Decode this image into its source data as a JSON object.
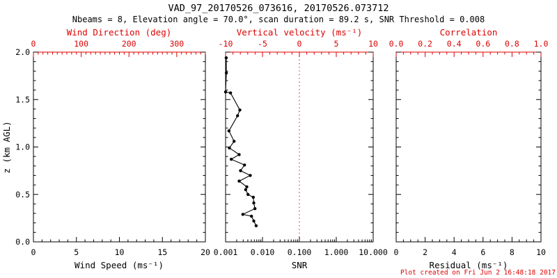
{
  "header": {
    "title": "VAD_97_20170526_073616, 20170526.073712",
    "subtitle": "Nbeams = 8, Elevation angle = 70.0°, scan duration = 89.2 s, SNR Threshold = 0.008"
  },
  "footer": {
    "created": "Plot created on Fri Jun  2 16:48:18 2017"
  },
  "colors": {
    "axis_primary": "#000000",
    "axis_secondary": "#dd0000",
    "background": "#ffffff",
    "data": "#000000"
  },
  "chart_data": [
    {
      "type": "line",
      "panel": "wind-speed",
      "x_bottom": {
        "label": "Wind Speed (ms⁻¹)",
        "scale": "linear",
        "min": 0,
        "max": 20,
        "ticks": [
          "0",
          "5",
          "10",
          "15",
          "20"
        ],
        "tick_values": [
          0,
          5,
          10,
          15,
          20
        ],
        "minor_step": 1
      },
      "x_top": {
        "label": "Wind Direction (deg)",
        "scale": "linear",
        "min": 0,
        "max": 360,
        "ticks": [
          "0",
          "100",
          "200",
          "300"
        ],
        "tick_values": [
          0,
          100,
          200,
          300
        ],
        "minor_step": 10
      },
      "y": {
        "label": "z (km AGL)",
        "min": 0,
        "max": 2,
        "ticks": [
          "2.0",
          "1.5",
          "1.0",
          "0.5",
          "0.0"
        ],
        "tick_values": [
          2,
          1.5,
          1,
          0.5,
          0
        ],
        "minor_step": 0.1
      },
      "series": []
    },
    {
      "type": "line",
      "panel": "snr",
      "x_bottom": {
        "label": "SNR",
        "scale": "log",
        "min": 0.001,
        "max": 10,
        "ticks": [
          "0.001",
          "0.010",
          "0.100",
          "1.000",
          "10.000"
        ],
        "tick_values": [
          0.001,
          0.01,
          0.1,
          1,
          10
        ]
      },
      "x_top": {
        "label": "Vertical velocity (ms⁻¹)",
        "scale": "linear",
        "min": -10,
        "max": 10,
        "ticks": [
          "-10",
          "-5",
          "0",
          "5",
          "10"
        ],
        "tick_values": [
          -10,
          -5,
          0,
          5,
          10
        ],
        "minor_step": 1
      },
      "y": {
        "min": 0,
        "max": 2,
        "tick_values": [
          2,
          1.5,
          1,
          0.5,
          0
        ],
        "minor_step": 0.1
      },
      "ref_line": {
        "axis": "x_top",
        "value": 0,
        "style": "dotted",
        "color": "#dd0000"
      },
      "series": [
        {
          "name": "snr-profile",
          "marker": "dot",
          "points": [
            [
              0.00104,
              1.94
            ],
            [
              0.00105,
              1.78
            ],
            [
              0.001,
              1.58
            ],
            [
              0.00136,
              1.57
            ],
            [
              0.00244,
              1.39
            ],
            [
              0.00211,
              1.33
            ],
            [
              0.00123,
              1.17
            ],
            [
              0.0017,
              1.06
            ],
            [
              0.00127,
              0.99
            ],
            [
              0.00233,
              0.92
            ],
            [
              0.00143,
              0.87
            ],
            [
              0.00326,
              0.81
            ],
            [
              0.00254,
              0.75
            ],
            [
              0.00468,
              0.7
            ],
            [
              0.00233,
              0.64
            ],
            [
              0.00377,
              0.58
            ],
            [
              0.00349,
              0.55
            ],
            [
              0.00405,
              0.5
            ],
            [
              0.00564,
              0.47
            ],
            [
              0.00581,
              0.41
            ],
            [
              0.00626,
              0.35
            ],
            [
              0.00294,
              0.29
            ],
            [
              0.00503,
              0.27
            ],
            [
              0.00581,
              0.22
            ],
            [
              0.00672,
              0.17
            ]
          ]
        }
      ]
    },
    {
      "type": "line",
      "panel": "residual",
      "x_bottom": {
        "label": "Residual (ms⁻¹)",
        "scale": "linear",
        "min": 0,
        "max": 10,
        "ticks": [
          "0",
          "2",
          "4",
          "6",
          "8",
          "10"
        ],
        "tick_values": [
          0,
          2,
          4,
          6,
          8,
          10
        ],
        "minor_step": 0.5
      },
      "x_top": {
        "label": "Correlation",
        "scale": "linear",
        "min": 0,
        "max": 1,
        "ticks": [
          "0.0",
          "0.2",
          "0.4",
          "0.6",
          "0.8",
          "1.0"
        ],
        "tick_values": [
          0,
          0.2,
          0.4,
          0.6,
          0.8,
          1
        ],
        "minor_step": 0.05
      },
      "y": {
        "min": 0,
        "max": 2,
        "tick_values": [
          2,
          1.5,
          1,
          0.5,
          0
        ],
        "minor_step": 0.1
      },
      "series": []
    }
  ]
}
